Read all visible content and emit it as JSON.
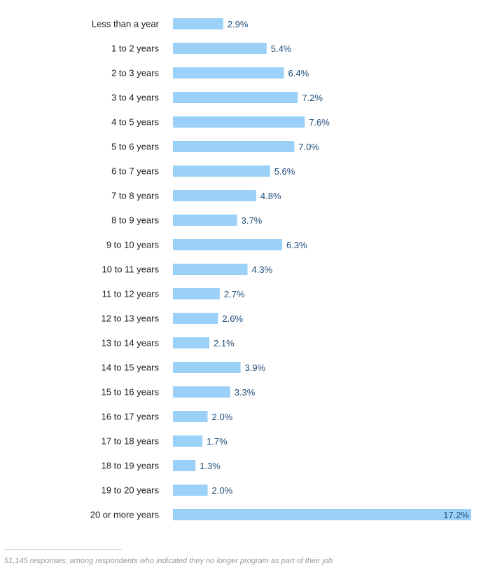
{
  "chart_data": {
    "type": "bar",
    "orientation": "horizontal",
    "categories": [
      "Less than a year",
      "1 to 2 years",
      "2 to 3 years",
      "3 to 4 years",
      "4 to 5 years",
      "5 to 6 years",
      "6 to 7 years",
      "7 to 8 years",
      "8 to 9 years",
      "9 to 10 years",
      "10 to 11 years",
      "11 to 12 years",
      "12 to 13 years",
      "13 to 14 years",
      "14 to 15 years",
      "15 to 16 years",
      "16 to 17 years",
      "17 to 18 years",
      "18 to 19 years",
      "19 to 20 years",
      "20 or more years"
    ],
    "values": [
      2.9,
      5.4,
      6.4,
      7.2,
      7.6,
      7.0,
      5.6,
      4.8,
      3.7,
      6.3,
      4.3,
      2.7,
      2.6,
      2.1,
      3.9,
      3.3,
      2.0,
      1.7,
      1.3,
      2.0,
      17.2
    ],
    "value_labels": [
      "2.9%",
      "5.4%",
      "6.4%",
      "7.2%",
      "7.6%",
      "7.0%",
      "5.6%",
      "4.8%",
      "3.7%",
      "6.3%",
      "4.3%",
      "2.7%",
      "2.6%",
      "2.1%",
      "3.9%",
      "3.3%",
      "2.0%",
      "1.7%",
      "1.3%",
      "2.0%",
      "17.2%"
    ],
    "unit": "%",
    "bar_color": "#9bd1f8",
    "value_label_color": "#1f4e79",
    "grid": false,
    "legend": "none"
  },
  "footnote": "51,145 responses; among respondents who indicated they no longer program as part of their job"
}
